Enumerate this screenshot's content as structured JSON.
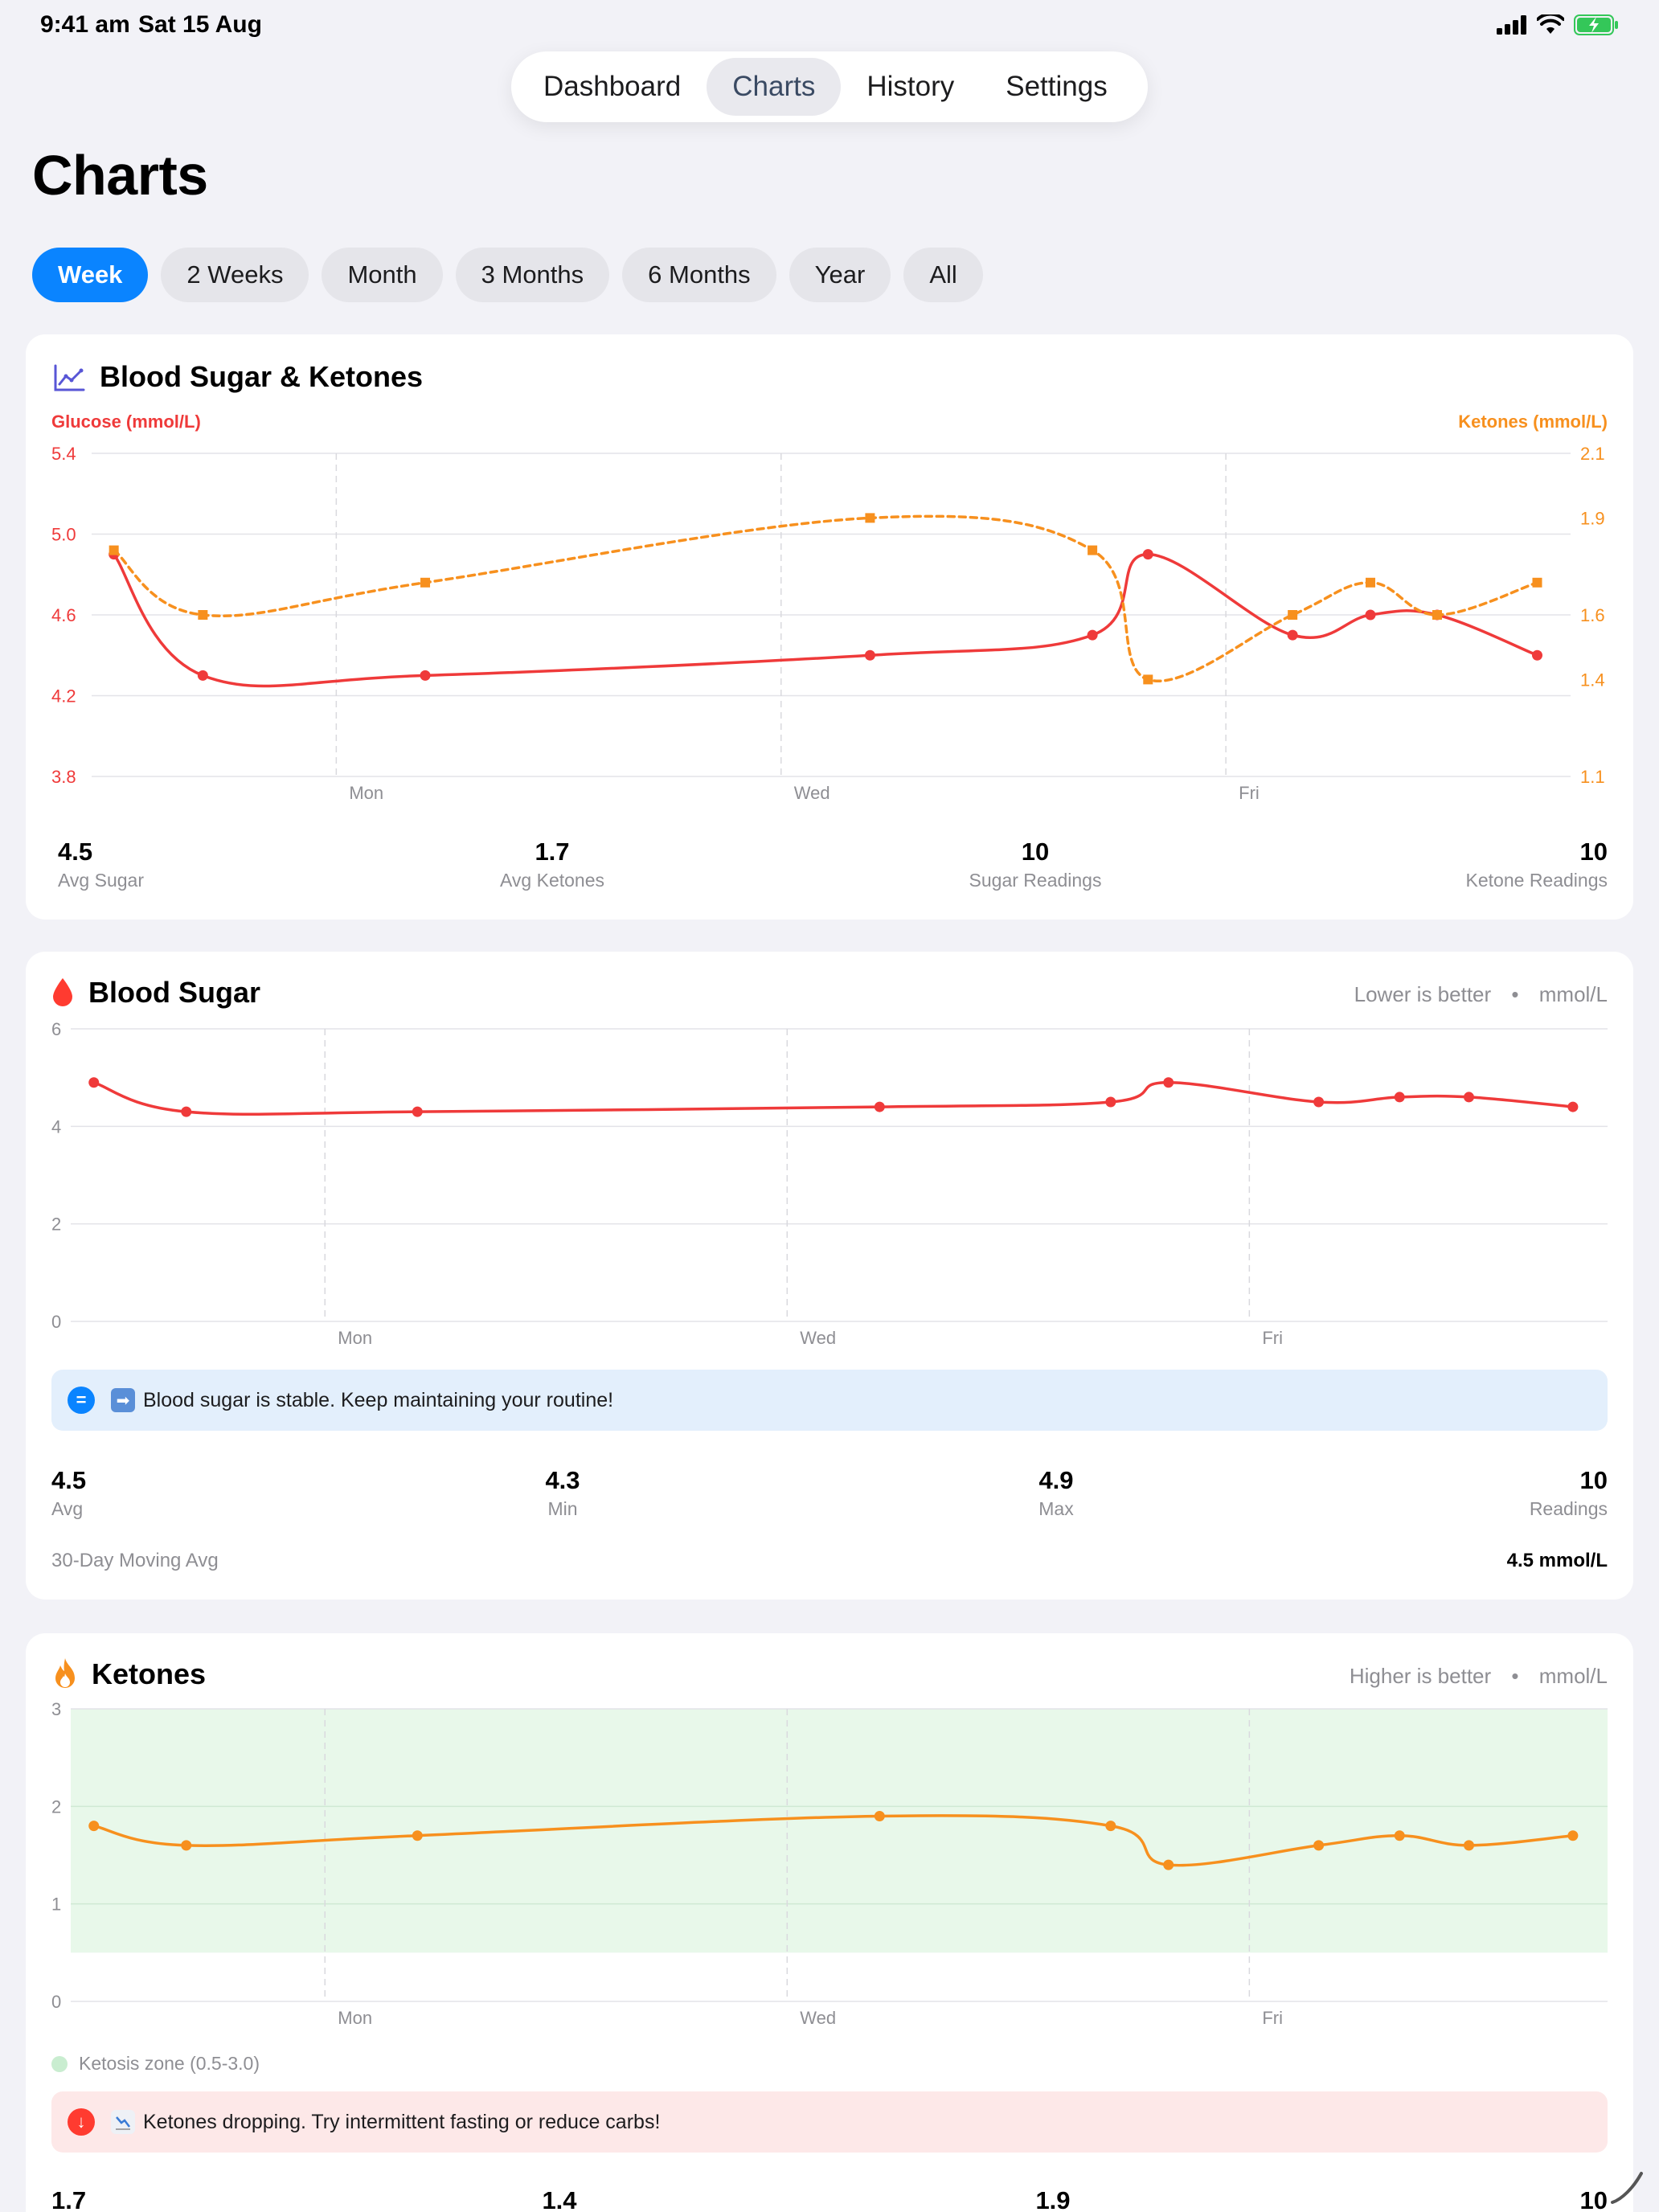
{
  "status_bar": {
    "time": "9:41 am",
    "date": "Sat 15 Aug"
  },
  "tabs": [
    {
      "label": "Dashboard",
      "active": false
    },
    {
      "label": "Charts",
      "active": true
    },
    {
      "label": "History",
      "active": false
    },
    {
      "label": "Settings",
      "active": false
    }
  ],
  "page_title": "Charts",
  "ranges": [
    {
      "label": "Week",
      "active": true
    },
    {
      "label": "2 Weeks",
      "active": false
    },
    {
      "label": "Month",
      "active": false
    },
    {
      "label": "3 Months",
      "active": false
    },
    {
      "label": "6 Months",
      "active": false
    },
    {
      "label": "Year",
      "active": false
    },
    {
      "label": "All",
      "active": false
    }
  ],
  "colors": {
    "accent": "#0a84ff",
    "glucose": "#ef3a3a",
    "ketones": "#f7901e",
    "ketosis_zone": "#e8f8ea",
    "info_banner": "#e3effc",
    "warn_banner": "#fde8e8"
  },
  "combined": {
    "title": "Blood Sugar & Ketones",
    "icon": "line-chart-icon",
    "left_axis_title": "Glucose (mmol/L)",
    "right_axis_title": "Ketones (mmol/L)",
    "stats": [
      {
        "value": "4.5",
        "label": "Avg Sugar"
      },
      {
        "value": "1.7",
        "label": "Avg Ketones"
      },
      {
        "value": "10",
        "label": "Sugar Readings"
      },
      {
        "value": "10",
        "label": "Ketone Readings"
      }
    ]
  },
  "blood_sugar": {
    "title": "Blood Sugar",
    "icon": "blood-drop-icon",
    "hint": "Lower is better",
    "unit": "mmol/L",
    "banner_text": "Blood sugar is stable. Keep maintaining your routine!",
    "banner_icon": "equals-icon",
    "stats": [
      {
        "value": "4.5",
        "label": "Avg"
      },
      {
        "value": "4.3",
        "label": "Min"
      },
      {
        "value": "4.9",
        "label": "Max"
      },
      {
        "value": "10",
        "label": "Readings"
      }
    ],
    "moving_avg_label": "30-Day Moving Avg",
    "moving_avg_value": "4.5 mmol/L"
  },
  "ketones": {
    "title": "Ketones",
    "icon": "flame-icon",
    "hint": "Higher is better",
    "unit": "mmol/L",
    "zone_legend": "Ketosis zone (0.5-3.0)",
    "banner_text": "Ketones dropping. Try intermittent fasting or reduce carbs!",
    "banner_icon": "down-arrow-icon",
    "stats": [
      {
        "value": "1.7"
      },
      {
        "value": "1.4"
      },
      {
        "value": "1.9"
      },
      {
        "value": "10"
      }
    ]
  },
  "chart_data": [
    {
      "type": "line",
      "title": "Blood Sugar & Ketones",
      "x_unit": "days (Sun=0)",
      "x_ticks": [
        {
          "x": 1,
          "label": "Mon"
        },
        {
          "x": 3,
          "label": "Wed"
        },
        {
          "x": 5,
          "label": "Fri"
        }
      ],
      "xlim": [
        -0.1,
        6.55
      ],
      "ylabel": "Glucose (mmol/L)",
      "ylim": [
        3.8,
        5.4
      ],
      "yticks": [
        "3.8",
        "4.2",
        "4.6",
        "5.0",
        "5.4"
      ],
      "y2label": "Ketones (mmol/L)",
      "y2lim": [
        1.1,
        2.1
      ],
      "y2ticks": [
        "1.1",
        "1.4",
        "1.6",
        "1.9",
        "2.1"
      ],
      "grid": true,
      "series": [
        {
          "name": "Glucose (mmol/L)",
          "axis": "left",
          "style": "solid",
          "x": [
            0,
            0.4,
            1.4,
            3.4,
            4.4,
            4.65,
            5.3,
            5.65,
            5.95,
            6.4
          ],
          "y": [
            4.9,
            4.3,
            4.3,
            4.4,
            4.5,
            4.9,
            4.5,
            4.6,
            4.6,
            4.4
          ]
        },
        {
          "name": "Ketones (mmol/L)",
          "axis": "right",
          "style": "dashed",
          "x": [
            0,
            0.4,
            1.4,
            3.4,
            4.4,
            4.65,
            5.3,
            5.65,
            5.95,
            6.4
          ],
          "y": [
            1.8,
            1.6,
            1.7,
            1.9,
            1.8,
            1.4,
            1.6,
            1.7,
            1.6,
            1.7
          ]
        }
      ]
    },
    {
      "type": "line",
      "title": "Blood Sugar",
      "x_ticks": [
        {
          "x": 1,
          "label": "Mon"
        },
        {
          "x": 3,
          "label": "Wed"
        },
        {
          "x": 5,
          "label": "Fri"
        }
      ],
      "xlim": [
        -0.1,
        6.55
      ],
      "ylim": [
        0,
        6
      ],
      "yticks": [
        "0",
        "2",
        "4",
        "6"
      ],
      "grid": true,
      "series": [
        {
          "name": "Blood Sugar",
          "x": [
            0,
            0.4,
            1.4,
            3.4,
            4.4,
            4.65,
            5.3,
            5.65,
            5.95,
            6.4
          ],
          "y": [
            4.9,
            4.3,
            4.3,
            4.4,
            4.5,
            4.9,
            4.5,
            4.6,
            4.6,
            4.4
          ]
        }
      ]
    },
    {
      "type": "area",
      "title": "Ketones",
      "x_ticks": [
        {
          "x": 1,
          "label": "Mon"
        },
        {
          "x": 3,
          "label": "Wed"
        },
        {
          "x": 5,
          "label": "Fri"
        }
      ],
      "xlim": [
        -0.1,
        6.55
      ],
      "ylim": [
        0,
        3
      ],
      "yticks": [
        "0",
        "1",
        "2",
        "3"
      ],
      "zone": [
        0.5,
        3.0
      ],
      "grid": true,
      "series": [
        {
          "name": "Ketones",
          "x": [
            0,
            0.4,
            1.4,
            3.4,
            4.4,
            4.65,
            5.3,
            5.65,
            5.95,
            6.4
          ],
          "y": [
            1.8,
            1.6,
            1.7,
            1.9,
            1.8,
            1.4,
            1.6,
            1.7,
            1.6,
            1.7
          ]
        }
      ]
    }
  ]
}
